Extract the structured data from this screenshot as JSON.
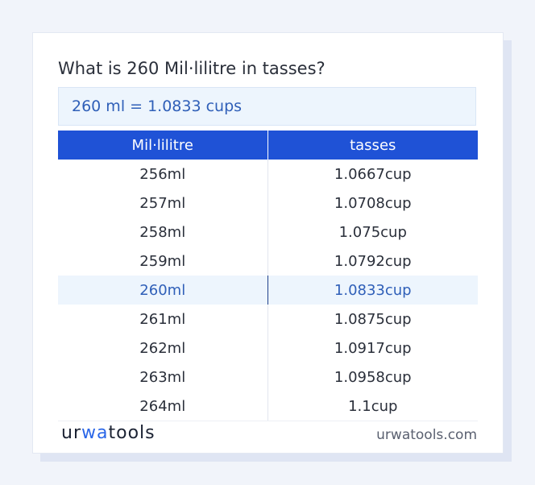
{
  "question": "What is 260 Mil·lilitre in tasses?",
  "result": "260 ml = 1.0833 cups",
  "table": {
    "headers": [
      "Mil·lilitre",
      "tasses"
    ],
    "rows": [
      [
        "256ml",
        "1.0667cup"
      ],
      [
        "257ml",
        "1.0708cup"
      ],
      [
        "258ml",
        "1.075cup"
      ],
      [
        "259ml",
        "1.0792cup"
      ],
      [
        "260ml",
        "1.0833cup"
      ],
      [
        "261ml",
        "1.0875cup"
      ],
      [
        "262ml",
        "1.0917cup"
      ],
      [
        "263ml",
        "1.0958cup"
      ],
      [
        "264ml",
        "1.1cup"
      ]
    ],
    "highlighted_row": 4
  },
  "logo": {
    "part1": "ur",
    "part2": "wa",
    "part3": "tools"
  },
  "site": "urwatools.com",
  "colors": {
    "header_bg": "#1f52d6",
    "accent_text": "#2f5fb8",
    "highlight_bg": "#edf5fd"
  }
}
